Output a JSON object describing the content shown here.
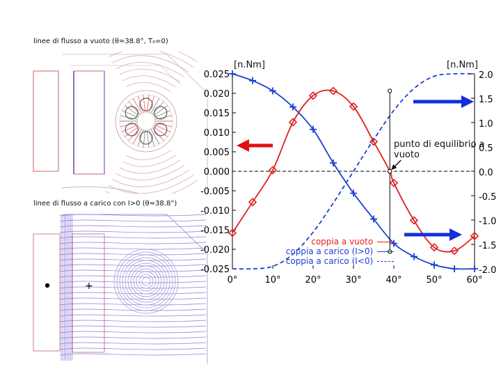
{
  "captions": {
    "noload": "linee di flusso a vuoto (θ≈38.8°, T₀=0)",
    "load": "linee di flusso a carico con I>0 (θ≈38.8°)"
  },
  "plus_sign": "+",
  "colors": {
    "red": "#e02020",
    "blue": "#1a3fd0",
    "arrow_red": "#e01010",
    "arrow_blue": "#1430d8",
    "flux_red": "#e06060",
    "flux_violet": "#8a78d8"
  },
  "chart_data": {
    "type": "line",
    "title": "",
    "xlabel": "",
    "left_unit": "[n.Nm]",
    "right_unit": "[n.Nm]",
    "x_ticks": [
      0,
      10,
      20,
      30,
      40,
      50,
      60
    ],
    "x_tick_labels": [
      "0°",
      "10°",
      "20°",
      "30°",
      "40°",
      "50°",
      "60°"
    ],
    "xlim": [
      0,
      60
    ],
    "ylim_left": [
      -0.025,
      0.025
    ],
    "y_ticks_left": [
      0.025,
      0.02,
      0.015,
      0.01,
      0.005,
      0.0,
      -0.005,
      -0.01,
      -0.015,
      -0.02,
      -0.025
    ],
    "y_tick_labels_left": [
      "0.025",
      "0.020",
      "0.015",
      "0.010",
      "0.005",
      "0.000",
      "-0.005",
      "-0.010",
      "-0.015",
      "-0.020",
      "-0.025"
    ],
    "ylim_right": [
      -2.0,
      2.0
    ],
    "y_ticks_right": [
      2.0,
      1.5,
      1.0,
      0.5,
      0.0,
      -0.5,
      -1.0,
      -1.5,
      -2.0
    ],
    "y_tick_labels_right": [
      "2.0",
      "1.5",
      "1.0",
      "0.5",
      "0.0",
      "-0.5",
      "-1.0",
      "-1.5",
      "-2.0"
    ],
    "series": [
      {
        "name": "coppia a vuoto",
        "axis": "left",
        "color": "red",
        "style": "solid",
        "marker": "diamond",
        "x": [
          0,
          5,
          10,
          15,
          20,
          25,
          30,
          35,
          39,
          40,
          45,
          50,
          55,
          60
        ],
        "y": [
          -0.0158,
          -0.0079,
          0.0003,
          0.0126,
          0.0194,
          0.0206,
          0.0166,
          0.0076,
          0.0,
          -0.003,
          -0.0126,
          -0.0195,
          -0.0204,
          -0.0166
        ]
      },
      {
        "name": "coppia a carico (I>0)",
        "axis": "right",
        "color": "blue",
        "style": "solid",
        "marker": "plus",
        "x": [
          0,
          5,
          10,
          15,
          20,
          25,
          30,
          35,
          40,
          45,
          50,
          55,
          60
        ],
        "y": [
          2.0,
          1.86,
          1.65,
          1.32,
          0.86,
          0.17,
          -0.45,
          -0.98,
          -1.48,
          -1.75,
          -1.92,
          -2.0,
          -2.0
        ]
      },
      {
        "name": "coppia a carico (I<0)",
        "axis": "right",
        "color": "blue",
        "style": "dashed",
        "marker": "none",
        "x": [
          0,
          5,
          10,
          15,
          20,
          25,
          30,
          35,
          40,
          45,
          50,
          55,
          60
        ],
        "y": [
          -2.0,
          -2.0,
          -1.95,
          -1.7,
          -1.25,
          -0.65,
          0.0,
          0.65,
          1.25,
          1.7,
          1.95,
          2.0,
          2.0
        ]
      }
    ],
    "equilibrium": {
      "x": 39,
      "label": "punto di equilibrio a vuoto"
    },
    "legend_position": "bottom-right",
    "grid": false
  }
}
